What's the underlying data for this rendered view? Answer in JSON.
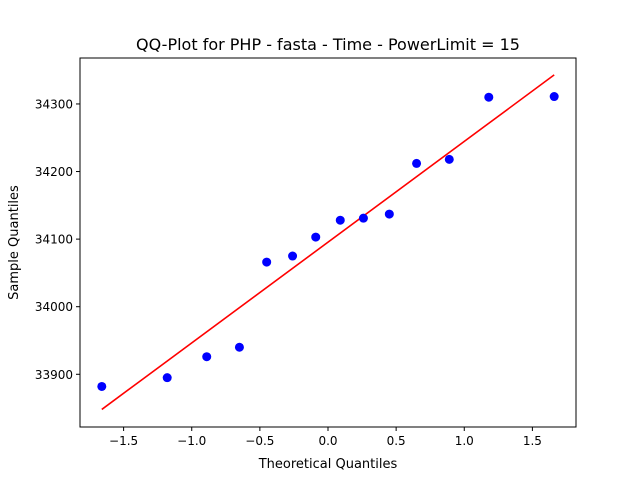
{
  "chart_data": {
    "type": "scatter",
    "title": "QQ-Plot for PHP - fasta - Time - PowerLimit = 15",
    "xlabel": "Theoretical Quantiles",
    "ylabel": "Sample Quantiles",
    "xlim": [
      -1.82,
      1.82
    ],
    "ylim": [
      33822,
      34368
    ],
    "grid": false,
    "legend": "none",
    "xticks": [
      -1.5,
      -1.0,
      -0.5,
      0.0,
      0.5,
      1.0,
      1.5
    ],
    "xtick_labels": [
      "−1.5",
      "−1.0",
      "−0.5",
      "0.0",
      "0.5",
      "1.0",
      "1.5"
    ],
    "yticks": [
      33900,
      34000,
      34100,
      34200,
      34300
    ],
    "ytick_labels": [
      "33900",
      "34000",
      "34100",
      "34200",
      "34300"
    ],
    "series": [
      {
        "kind": "points",
        "color": "#0000ff",
        "points": [
          {
            "x": -1.66,
            "y": 33882
          },
          {
            "x": -1.18,
            "y": 33895
          },
          {
            "x": -0.89,
            "y": 33926
          },
          {
            "x": -0.65,
            "y": 33940
          },
          {
            "x": -0.45,
            "y": 34066
          },
          {
            "x": -0.26,
            "y": 34075
          },
          {
            "x": -0.09,
            "y": 34103
          },
          {
            "x": 0.09,
            "y": 34128
          },
          {
            "x": 0.26,
            "y": 34131
          },
          {
            "x": 0.45,
            "y": 34137
          },
          {
            "x": 0.65,
            "y": 34212
          },
          {
            "x": 0.89,
            "y": 34218
          },
          {
            "x": 1.18,
            "y": 34310
          },
          {
            "x": 1.66,
            "y": 34311
          }
        ]
      },
      {
        "kind": "line",
        "color": "#ff0000",
        "points": [
          {
            "x": -1.66,
            "y": 33848
          },
          {
            "x": 1.66,
            "y": 34343
          }
        ]
      }
    ]
  }
}
